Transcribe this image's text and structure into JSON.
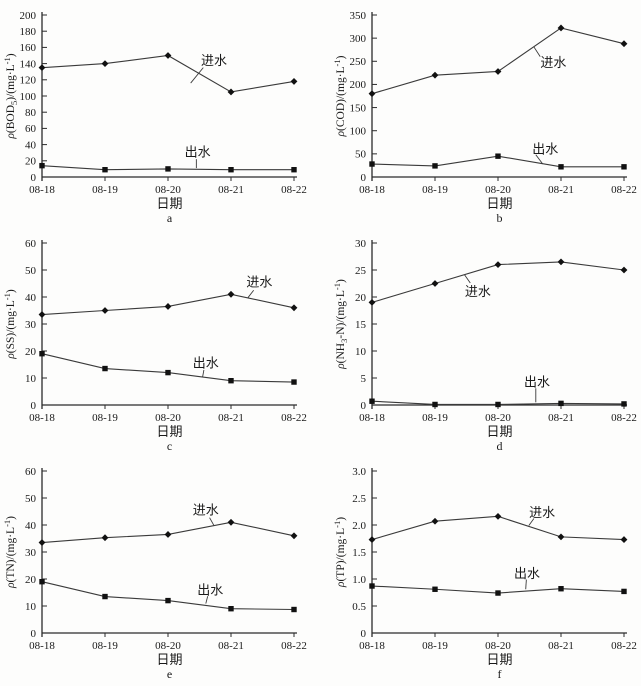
{
  "colors": {
    "axis": "#2b2b2b",
    "line": "#3a3a3a",
    "marker": "#111111",
    "text": "#1a1a1a",
    "background": "#fdfdfc"
  },
  "figure": {
    "xlabel": "日期",
    "influent_label": "进水",
    "effluent_label": "出水"
  },
  "chart_data": [
    {
      "letter": "a",
      "type": "line",
      "ylabel": "ρ(BOD5)/(mg·L-1)",
      "ylabel_parts": [
        {
          "t": "ρ",
          "italic": true
        },
        {
          "t": "(BOD"
        },
        {
          "t": "5",
          "pos": "sub"
        },
        {
          "t": ")/(mg·L"
        },
        {
          "t": "-1",
          "pos": "sup"
        },
        {
          "t": ")"
        }
      ],
      "xlabel": "日期",
      "categories": [
        "08-18",
        "08-19",
        "08-20",
        "08-21",
        "08-22"
      ],
      "ylim": [
        0,
        200
      ],
      "ytick_step": 20,
      "series": [
        {
          "name": "进水",
          "marker": "diamond",
          "values": [
            135,
            140,
            150,
            105,
            118
          ]
        },
        {
          "name": "出水",
          "marker": "square",
          "values": [
            14,
            9,
            10,
            9,
            9
          ]
        }
      ],
      "annotations": [
        {
          "text": "进水",
          "x": 2.73,
          "y": 144,
          "leader": [
            [
              2.56,
              135
            ],
            [
              2.36,
              116
            ]
          ]
        },
        {
          "text": "出水",
          "x": 2.47,
          "y": 31,
          "leader": [
            [
              2.45,
              22
            ],
            [
              2.45,
              11
            ]
          ]
        }
      ]
    },
    {
      "letter": "b",
      "type": "line",
      "ylabel": "ρ(COD)/(mg·L-1)",
      "ylabel_parts": [
        {
          "t": "ρ",
          "italic": true
        },
        {
          "t": "(COD)/(mg·L"
        },
        {
          "t": "-1",
          "pos": "sup"
        },
        {
          "t": ")"
        }
      ],
      "xlabel": "日期",
      "categories": [
        "08-18",
        "08-19",
        "08-20",
        "08-21",
        "08-22"
      ],
      "ylim": [
        0,
        350
      ],
      "ytick_step": 50,
      "series": [
        {
          "name": "进水",
          "marker": "diamond",
          "values": [
            180,
            220,
            228,
            322,
            288
          ]
        },
        {
          "name": "出水",
          "marker": "square",
          "values": [
            28,
            24,
            45,
            22,
            22
          ]
        }
      ],
      "annotations": [
        {
          "text": "进水",
          "x": 2.88,
          "y": 247,
          "leader": [
            [
              2.67,
              260
            ],
            [
              2.57,
              281
            ]
          ]
        },
        {
          "text": "出水",
          "x": 2.75,
          "y": 61,
          "leader": [
            [
              2.6,
              48
            ],
            [
              2.71,
              28
            ]
          ]
        }
      ]
    },
    {
      "letter": "c",
      "type": "line",
      "ylabel": "ρ(SS)/(mg·L-1)",
      "ylabel_parts": [
        {
          "t": "ρ",
          "italic": true
        },
        {
          "t": "(SS)/(mg·L"
        },
        {
          "t": "-1",
          "pos": "sup"
        },
        {
          "t": ")"
        }
      ],
      "xlabel": "日期",
      "categories": [
        "08-18",
        "08-19",
        "08-20",
        "08-21",
        "08-22"
      ],
      "ylim": [
        0,
        60
      ],
      "ytick_step": 10,
      "series": [
        {
          "name": "进水",
          "marker": "diamond",
          "values": [
            33.5,
            35,
            36.5,
            41,
            36
          ]
        },
        {
          "name": "出水",
          "marker": "square",
          "values": [
            19,
            13.5,
            12,
            9,
            8.5
          ]
        }
      ],
      "annotations": [
        {
          "text": "进水",
          "x": 3.45,
          "y": 45.5,
          "leader": [
            [
              3.36,
              42.5
            ],
            [
              3.27,
              39.8
            ]
          ]
        },
        {
          "text": "出水",
          "x": 2.6,
          "y": 15.5,
          "leader": [
            [
              2.57,
              13
            ],
            [
              2.55,
              10.5
            ]
          ]
        }
      ]
    },
    {
      "letter": "d",
      "type": "line",
      "ylabel": "ρ(NH3-N)/(mg·L-1)",
      "ylabel_parts": [
        {
          "t": "ρ",
          "italic": true
        },
        {
          "t": "(NH"
        },
        {
          "t": "3",
          "pos": "sub"
        },
        {
          "t": "-N)/(mg·L"
        },
        {
          "t": "-1",
          "pos": "sup"
        },
        {
          "t": ")"
        }
      ],
      "xlabel": "日期",
      "categories": [
        "08-18",
        "08-19",
        "08-20",
        "08-21",
        "08-22"
      ],
      "ylim": [
        0,
        30
      ],
      "ytick_step": 5,
      "series": [
        {
          "name": "进水",
          "marker": "diamond",
          "values": [
            19,
            22.5,
            26,
            26.5,
            25
          ]
        },
        {
          "name": "出水",
          "marker": "square",
          "values": [
            0.7,
            0.1,
            0.1,
            0.3,
            0.2
          ]
        }
      ],
      "annotations": [
        {
          "text": "进水",
          "x": 1.68,
          "y": 21,
          "leader": [
            [
              1.56,
              22.6
            ],
            [
              1.47,
              24.1
            ]
          ]
        },
        {
          "text": "出水",
          "x": 2.62,
          "y": 4.3,
          "leader": [
            [
              2.6,
              3.1
            ],
            [
              2.6,
              0.5
            ]
          ]
        }
      ]
    },
    {
      "letter": "e",
      "type": "line",
      "ylabel": "ρ(TN)/(mg·L-1)",
      "ylabel_parts": [
        {
          "t": "ρ",
          "italic": true
        },
        {
          "t": "(TN)/(mg·L"
        },
        {
          "t": "-1",
          "pos": "sup"
        },
        {
          "t": ")"
        }
      ],
      "xlabel": "日期",
      "categories": [
        "08-18",
        "08-19",
        "08-20",
        "08-21",
        "08-22"
      ],
      "ylim": [
        0,
        60
      ],
      "ytick_step": 10,
      "series": [
        {
          "name": "进水",
          "marker": "diamond",
          "values": [
            33.5,
            35.3,
            36.5,
            41,
            36
          ]
        },
        {
          "name": "出水",
          "marker": "square",
          "values": [
            19,
            13.5,
            12,
            9,
            8.7
          ]
        }
      ],
      "annotations": [
        {
          "text": "进水",
          "x": 2.6,
          "y": 45.5,
          "leader": [
            [
              2.66,
              42.7
            ],
            [
              2.73,
              39.8
            ]
          ]
        },
        {
          "text": "出水",
          "x": 2.67,
          "y": 16,
          "leader": [
            [
              2.63,
              13.6
            ],
            [
              2.6,
              10.9
            ]
          ]
        }
      ]
    },
    {
      "letter": "f",
      "type": "line",
      "ylabel": "ρ(TP)/(mg·L-1)",
      "ylabel_parts": [
        {
          "t": "ρ",
          "italic": true
        },
        {
          "t": "(TP)/(mg·L"
        },
        {
          "t": "-1",
          "pos": "sup"
        },
        {
          "t": ")"
        }
      ],
      "xlabel": "日期",
      "categories": [
        "08-18",
        "08-19",
        "08-20",
        "08-21",
        "08-22"
      ],
      "ylim": [
        0,
        3
      ],
      "ytick_step": 0.5,
      "series": [
        {
          "name": "进水",
          "marker": "diamond",
          "values": [
            1.73,
            2.07,
            2.16,
            1.78,
            1.73
          ]
        },
        {
          "name": "出水",
          "marker": "square",
          "values": [
            0.87,
            0.81,
            0.74,
            0.82,
            0.77
          ]
        }
      ],
      "annotations": [
        {
          "text": "进水",
          "x": 2.7,
          "y": 2.23,
          "leader": [
            [
              2.57,
              2.12
            ],
            [
              2.49,
              1.99
            ]
          ]
        },
        {
          "text": "出水",
          "x": 2.46,
          "y": 1.1,
          "leader": [
            [
              2.45,
              0.99
            ],
            [
              2.44,
              0.81
            ]
          ]
        }
      ]
    }
  ]
}
